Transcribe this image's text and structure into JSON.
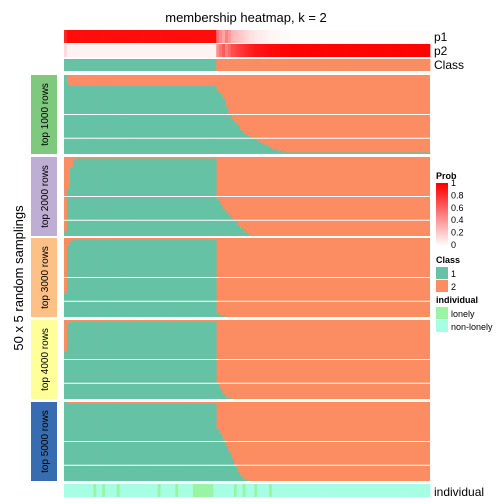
{
  "chart_data": {
    "type": "heatmap",
    "title": "membership heatmap, k = 2",
    "ylabel": "50 x 5 random samplings",
    "annotation_rows": [
      "p1",
      "p2",
      "Class"
    ],
    "bottom_annotation": "individual",
    "n_samples": 125,
    "n_class1_samples": 52,
    "groups": [
      {
        "label": "top 1000 rows",
        "color": "#7FC97F",
        "n_samplings": 50,
        "class1_fraction_by_sample": [
          1.0,
          0.88,
          0.86,
          0.86,
          0.86,
          0.86,
          0.86,
          0.86,
          0.86,
          0.86,
          0.86,
          0.86,
          0.86,
          0.86,
          0.86,
          0.86,
          0.86,
          0.86,
          0.86,
          0.86,
          0.86,
          0.86,
          0.86,
          0.86,
          0.86,
          0.86,
          0.86,
          0.86,
          0.86,
          0.86,
          0.86,
          0.86,
          0.86,
          0.86,
          0.86,
          0.86,
          0.86,
          0.86,
          0.86,
          0.86,
          0.86,
          0.86,
          0.86,
          0.86,
          0.86,
          0.86,
          0.86,
          0.86,
          0.86,
          0.86,
          0.86,
          0.86,
          0.8,
          0.76,
          0.7,
          0.6,
          0.5,
          0.44,
          0.4,
          0.36,
          0.3,
          0.26,
          0.24,
          0.22,
          0.2,
          0.18,
          0.16,
          0.14,
          0.12,
          0.1,
          0.08,
          0.06,
          0.05,
          0.04,
          0.03,
          0.02,
          0.02,
          0.02,
          0.02,
          0.02,
          0.02,
          0.02,
          0.02,
          0.02,
          0.02,
          0.02,
          0.02,
          0.02,
          0.02,
          0.02,
          0.02,
          0.02,
          0.02,
          0.02,
          0.02,
          0.02,
          0.02,
          0.02,
          0.02,
          0.02,
          0.02,
          0.02,
          0.02,
          0.02,
          0.02,
          0.02,
          0.02,
          0.02,
          0.02,
          0.02,
          0.02,
          0.02,
          0.02,
          0.02,
          0.02,
          0.02,
          0.02,
          0.02,
          0.02,
          0.02,
          0.02,
          0.02,
          0.02,
          0.02,
          0.02
        ]
      },
      {
        "label": "top 2000 rows",
        "color": "#BEAED4",
        "n_samplings": 50,
        "class1_fraction_by_sample": [
          0.06,
          0.6,
          0.86,
          0.96,
          0.98,
          0.98,
          0.98,
          0.98,
          0.98,
          0.98,
          0.98,
          0.98,
          0.98,
          0.98,
          0.98,
          0.98,
          0.98,
          0.98,
          0.98,
          0.98,
          0.98,
          0.98,
          0.98,
          0.98,
          0.98,
          0.98,
          0.98,
          0.98,
          0.98,
          0.98,
          0.98,
          0.98,
          0.98,
          0.98,
          0.98,
          0.98,
          0.98,
          0.98,
          0.98,
          0.98,
          0.98,
          0.98,
          0.98,
          0.98,
          0.98,
          0.98,
          0.98,
          0.98,
          0.98,
          0.98,
          0.98,
          0.98,
          0.46,
          0.4,
          0.34,
          0.3,
          0.26,
          0.22,
          0.18,
          0.14,
          0.1,
          0.06,
          0.03,
          0.0,
          0.0,
          0.0,
          0.0,
          0.0,
          0.0,
          0.0,
          0.0,
          0.0,
          0.0,
          0.0,
          0.0,
          0.0,
          0.0,
          0.0,
          0.0,
          0.0,
          0.0,
          0.0,
          0.0,
          0.0,
          0.0,
          0.0,
          0.0,
          0.0,
          0.0,
          0.0,
          0.0,
          0.0,
          0.0,
          0.0,
          0.0,
          0.0,
          0.0,
          0.0,
          0.0,
          0.0,
          0.0,
          0.0,
          0.0,
          0.0,
          0.0,
          0.0,
          0.0,
          0.0,
          0.0,
          0.0,
          0.0,
          0.0,
          0.0,
          0.0,
          0.0,
          0.0,
          0.0,
          0.0,
          0.0,
          0.0,
          0.0,
          0.0,
          0.0,
          0.0,
          0.0
        ]
      },
      {
        "label": "top 3000 rows",
        "color": "#FDC086",
        "n_samplings": 50,
        "class1_fraction_by_sample": [
          0.3,
          0.9,
          0.96,
          0.98,
          0.98,
          0.98,
          0.98,
          0.98,
          0.98,
          0.98,
          0.98,
          0.98,
          0.98,
          0.98,
          0.98,
          0.98,
          0.98,
          0.98,
          0.98,
          0.98,
          0.98,
          0.98,
          0.98,
          0.98,
          0.98,
          0.98,
          0.98,
          0.98,
          0.98,
          0.98,
          0.98,
          0.98,
          0.98,
          0.98,
          0.98,
          0.98,
          0.98,
          0.98,
          0.98,
          0.98,
          0.98,
          0.98,
          0.98,
          0.98,
          0.98,
          0.98,
          0.98,
          0.98,
          0.98,
          0.98,
          0.98,
          0.98,
          0.04,
          0.02,
          0.02,
          0.0,
          0.0,
          0.0,
          0.0,
          0.0,
          0.0,
          0.0,
          0.0,
          0.0,
          0.0,
          0.0,
          0.0,
          0.0,
          0.0,
          0.0,
          0.0,
          0.0,
          0.0,
          0.0,
          0.0,
          0.0,
          0.0,
          0.0,
          0.0,
          0.0,
          0.0,
          0.0,
          0.0,
          0.0,
          0.0,
          0.0,
          0.0,
          0.0,
          0.0,
          0.0,
          0.0,
          0.0,
          0.0,
          0.0,
          0.0,
          0.0,
          0.0,
          0.0,
          0.0,
          0.0,
          0.0,
          0.0,
          0.0,
          0.0,
          0.0,
          0.0,
          0.0,
          0.0,
          0.0,
          0.0,
          0.0,
          0.0,
          0.0,
          0.0,
          0.0,
          0.0,
          0.0,
          0.0,
          0.0,
          0.0,
          0.0,
          0.0,
          0.0,
          0.0,
          0.0
        ]
      },
      {
        "label": "top 4000 rows",
        "color": "#FFFF99",
        "n_samplings": 50,
        "class1_fraction_by_sample": [
          0.6,
          0.96,
          0.98,
          0.98,
          0.98,
          0.98,
          0.98,
          0.98,
          0.98,
          0.98,
          0.98,
          0.98,
          0.98,
          0.98,
          0.98,
          0.98,
          0.98,
          0.98,
          0.98,
          0.98,
          0.98,
          0.98,
          0.98,
          0.98,
          0.98,
          0.98,
          0.98,
          0.98,
          0.98,
          0.98,
          0.98,
          0.98,
          0.98,
          0.98,
          0.98,
          0.98,
          0.98,
          0.98,
          0.98,
          0.98,
          0.98,
          0.98,
          0.98,
          0.98,
          0.98,
          0.98,
          0.98,
          0.98,
          0.98,
          0.98,
          0.98,
          0.98,
          0.2,
          0.12,
          0.06,
          0.02,
          0.02,
          0.0,
          0.0,
          0.0,
          0.0,
          0.0,
          0.0,
          0.0,
          0.0,
          0.0,
          0.0,
          0.0,
          0.0,
          0.0,
          0.0,
          0.0,
          0.0,
          0.0,
          0.0,
          0.0,
          0.0,
          0.0,
          0.0,
          0.0,
          0.0,
          0.0,
          0.0,
          0.0,
          0.0,
          0.0,
          0.0,
          0.0,
          0.0,
          0.0,
          0.0,
          0.0,
          0.0,
          0.0,
          0.0,
          0.0,
          0.0,
          0.0,
          0.0,
          0.0,
          0.0,
          0.0,
          0.0,
          0.0,
          0.0,
          0.0,
          0.0,
          0.0,
          0.0,
          0.0,
          0.0,
          0.0,
          0.0,
          0.0,
          0.0,
          0.0,
          0.0,
          0.0,
          0.0,
          0.0,
          0.0,
          0.0,
          0.0,
          0.0,
          0.0
        ]
      },
      {
        "label": "top 5000 rows",
        "color": "#386CB0",
        "n_samplings": 50,
        "class1_fraction_by_sample": [
          1.0,
          0.98,
          0.98,
          0.98,
          0.98,
          0.98,
          0.98,
          0.98,
          0.98,
          0.98,
          0.98,
          0.98,
          0.98,
          0.98,
          0.98,
          0.98,
          0.98,
          0.98,
          0.98,
          0.98,
          0.98,
          0.98,
          0.98,
          0.98,
          0.98,
          0.98,
          0.98,
          0.98,
          0.98,
          0.98,
          0.98,
          0.98,
          0.98,
          0.98,
          0.98,
          0.98,
          0.98,
          0.98,
          0.98,
          0.98,
          0.98,
          0.98,
          0.98,
          0.98,
          0.98,
          0.98,
          0.98,
          0.98,
          0.98,
          0.98,
          0.98,
          0.98,
          0.66,
          0.6,
          0.52,
          0.44,
          0.36,
          0.28,
          0.2,
          0.12,
          0.06,
          0.02,
          0.02,
          0.0,
          0.0,
          0.0,
          0.0,
          0.0,
          0.0,
          0.0,
          0.0,
          0.0,
          0.0,
          0.0,
          0.0,
          0.0,
          0.0,
          0.0,
          0.0,
          0.0,
          0.0,
          0.0,
          0.0,
          0.0,
          0.0,
          0.0,
          0.0,
          0.0,
          0.0,
          0.0,
          0.0,
          0.0,
          0.0,
          0.0,
          0.0,
          0.0,
          0.0,
          0.0,
          0.0,
          0.0,
          0.0,
          0.0,
          0.0,
          0.0,
          0.0,
          0.0,
          0.0,
          0.0,
          0.0,
          0.0,
          0.0,
          0.0,
          0.0,
          0.0,
          0.0,
          0.0,
          0.0,
          0.0,
          0.0,
          0.0,
          0.0,
          0.0,
          0.0,
          0.0,
          0.0
        ]
      }
    ],
    "p1_by_sample": [
      0.85,
      0.95,
      0.95,
      0.95,
      0.95,
      0.95,
      0.95,
      0.95,
      0.95,
      0.95,
      0.95,
      0.95,
      0.95,
      0.95,
      0.95,
      0.95,
      0.95,
      0.95,
      0.95,
      0.95,
      0.95,
      0.95,
      0.95,
      0.95,
      0.95,
      0.95,
      0.95,
      0.95,
      0.95,
      0.95,
      0.95,
      0.95,
      0.95,
      0.95,
      0.95,
      0.95,
      0.95,
      0.95,
      0.95,
      0.95,
      0.95,
      0.95,
      0.95,
      0.95,
      0.95,
      0.95,
      0.95,
      0.95,
      0.95,
      0.95,
      0.95,
      0.95,
      0.55,
      0.45,
      0.35,
      0.5,
      0.4,
      0.3,
      0.27,
      0.24,
      0.21,
      0.18,
      0.15,
      0.13,
      0.11,
      0.09,
      0.08,
      0.07,
      0.06,
      0.05,
      0.04,
      0.04,
      0.03,
      0.03,
      0.02,
      0.02,
      0.02,
      0.01,
      0.01,
      0.01,
      0.01,
      0.01,
      0.01,
      0.01,
      0.01,
      0.01,
      0.01,
      0.01,
      0.01,
      0.01,
      0.01,
      0.01,
      0.01,
      0.01,
      0.01,
      0.01,
      0.01,
      0.01,
      0.01,
      0.01,
      0.01,
      0.01,
      0.01,
      0.01,
      0.01,
      0.01,
      0.01,
      0.01,
      0.01,
      0.01,
      0.01,
      0.01,
      0.01,
      0.01,
      0.01,
      0.01,
      0.01,
      0.01,
      0.01,
      0.01,
      0.01,
      0.01,
      0.01,
      0.01,
      0.01
    ],
    "individual_by_sample": [
      "non-lonely",
      "non-lonely",
      "non-lonely",
      "non-lonely",
      "non-lonely",
      "non-lonely",
      "non-lonely",
      "non-lonely",
      "non-lonely",
      "non-lonely",
      "lonely",
      "non-lonely",
      "non-lonely",
      "lonely",
      "non-lonely",
      "non-lonely",
      "non-lonely",
      "non-lonely",
      "lonely",
      "non-lonely",
      "non-lonely",
      "non-lonely",
      "non-lonely",
      "non-lonely",
      "non-lonely",
      "non-lonely",
      "non-lonely",
      "non-lonely",
      "non-lonely",
      "non-lonely",
      "non-lonely",
      "non-lonely",
      "lonely",
      "non-lonely",
      "non-lonely",
      "non-lonely",
      "non-lonely",
      "non-lonely",
      "lonely",
      "non-lonely",
      "non-lonely",
      "non-lonely",
      "non-lonely",
      "non-lonely",
      "lonely",
      "lonely",
      "lonely",
      "lonely",
      "lonely",
      "lonely",
      "lonely",
      "non-lonely",
      "non-lonely",
      "non-lonely",
      "non-lonely",
      "non-lonely",
      "non-lonely",
      "non-lonely",
      "lonely",
      "non-lonely",
      "non-lonely",
      "lonely",
      "non-lonely",
      "non-lonely",
      "non-lonely",
      "lonely",
      "non-lonely",
      "non-lonely",
      "non-lonely",
      "non-lonely",
      "lonely",
      "non-lonely",
      "non-lonely",
      "non-lonely",
      "non-lonely",
      "non-lonely",
      "non-lonely",
      "non-lonely",
      "non-lonely",
      "non-lonely",
      "non-lonely",
      "non-lonely",
      "non-lonely",
      "non-lonely",
      "non-lonely",
      "non-lonely",
      "non-lonely",
      "non-lonely",
      "non-lonely",
      "non-lonely",
      "non-lonely",
      "non-lonely",
      "non-lonely",
      "non-lonely",
      "non-lonely",
      "non-lonely",
      "non-lonely",
      "non-lonely",
      "non-lonely",
      "non-lonely",
      "non-lonely",
      "non-lonely",
      "non-lonely",
      "non-lonely",
      "non-lonely",
      "non-lonely",
      "non-lonely",
      "non-lonely",
      "non-lonely",
      "non-lonely",
      "non-lonely",
      "non-lonely",
      "non-lonely",
      "non-lonely",
      "non-lonely",
      "non-lonely",
      "non-lonely",
      "non-lonely",
      "non-lonely",
      "non-lonely",
      "non-lonely",
      "non-lonely",
      "non-lonely",
      "non-lonely",
      "non-lonely"
    ],
    "legend": {
      "prob_title": "Prob",
      "prob_ticks": [
        "1",
        "0.8",
        "0.6",
        "0.4",
        "0.2",
        "0"
      ],
      "class_title": "Class",
      "class_items": [
        {
          "label": "1",
          "color": "#66C2A5"
        },
        {
          "label": "2",
          "color": "#FC8D62"
        }
      ],
      "individual_title": "individual",
      "individual_items": [
        {
          "label": "lonely",
          "color": "#98F5A4"
        },
        {
          "label": "non-lonely",
          "color": "#A6FFE3"
        }
      ]
    },
    "colors": {
      "class1": "#66C2A5",
      "class2": "#FC8D62",
      "prob_low": "#FFFFFF",
      "prob_high": "#FF0000"
    }
  }
}
